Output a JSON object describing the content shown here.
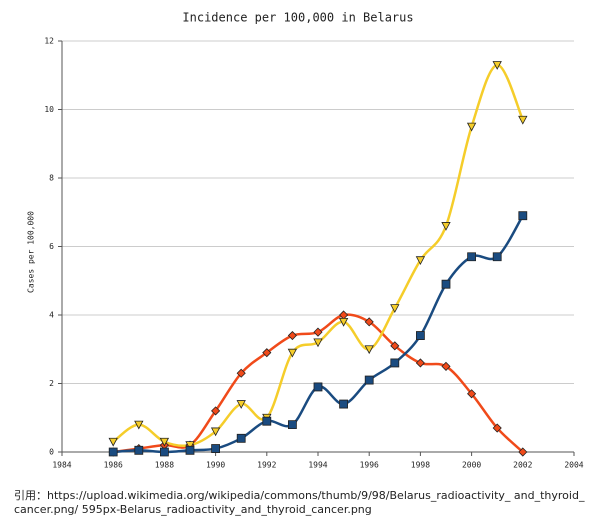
{
  "chart_data": {
    "type": "line",
    "title": "Incidence per 100,000 in Belarus",
    "y_label": "Cases per 100,000",
    "x": [
      1986,
      1987,
      1988,
      1989,
      1990,
      1991,
      1992,
      1993,
      1994,
      1995,
      1996,
      1997,
      1998,
      1999,
      2000,
      2001,
      2002
    ],
    "series": [
      {
        "color": "#1a4b80",
        "marker": "square",
        "values": [
          0,
          0.05,
          0,
          0.05,
          0.1,
          0.4,
          0.9,
          0.8,
          1.9,
          1.4,
          2.1,
          2.6,
          3.4,
          4.9,
          5.7,
          5.7,
          6.9
        ]
      },
      {
        "color": "#f5cd2a",
        "marker": "triangle-down",
        "values": [
          0.3,
          0.8,
          0.3,
          0.2,
          0.6,
          1.4,
          1.0,
          2.9,
          3.2,
          3.8,
          3.0,
          4.2,
          5.6,
          6.6,
          9.5,
          11.3,
          9.7
        ]
      },
      {
        "color": "#f04a1a",
        "marker": "diamond",
        "values": [
          0,
          0.1,
          0.2,
          0.2,
          1.2,
          2.3,
          2.9,
          3.4,
          3.5,
          4.0,
          3.8,
          3.1,
          2.6,
          2.5,
          1.7,
          0.7,
          0
        ]
      }
    ],
    "xlim": [
      1984,
      2004
    ],
    "xticks": [
      1984,
      1986,
      1988,
      1990,
      1992,
      1994,
      1996,
      1998,
      2000,
      2002,
      2004
    ],
    "ylim": [
      0,
      12
    ],
    "yticks": [
      0,
      2,
      4,
      6,
      8,
      10,
      12
    ],
    "grid": true,
    "smooth": true
  },
  "caption": [
    "引用：https://upload.wikimedia.org/wikipedia/commons/thumb/9/98/Belarus_radioactivity_ and_thyroid_",
    "cancer.png/ 595px-Belarus_radioactivity_and_thyroid_cancer.png"
  ]
}
